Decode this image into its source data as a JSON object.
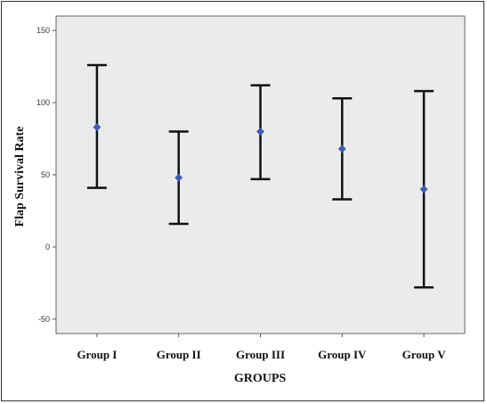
{
  "chart_data": {
    "type": "errorbar",
    "title": "",
    "xlabel": "GROUPS",
    "ylabel": "Flap Survival Rate",
    "categories": [
      "Group I",
      "Group II",
      "Group III",
      "Group IV",
      "Group V"
    ],
    "series": [
      {
        "means": [
          83,
          48,
          80,
          68,
          40
        ],
        "lower": [
          41,
          16,
          47,
          33,
          -28
        ],
        "upper": [
          126,
          80,
          112,
          103,
          108
        ]
      }
    ],
    "ylim": [
      -60,
      160
    ],
    "yticks": [
      -50,
      0,
      50,
      100,
      150
    ],
    "colors": {
      "plot_bg": "#ebebeb",
      "marker": "#3b5fb8",
      "bar": "#111111"
    },
    "grid": false
  }
}
